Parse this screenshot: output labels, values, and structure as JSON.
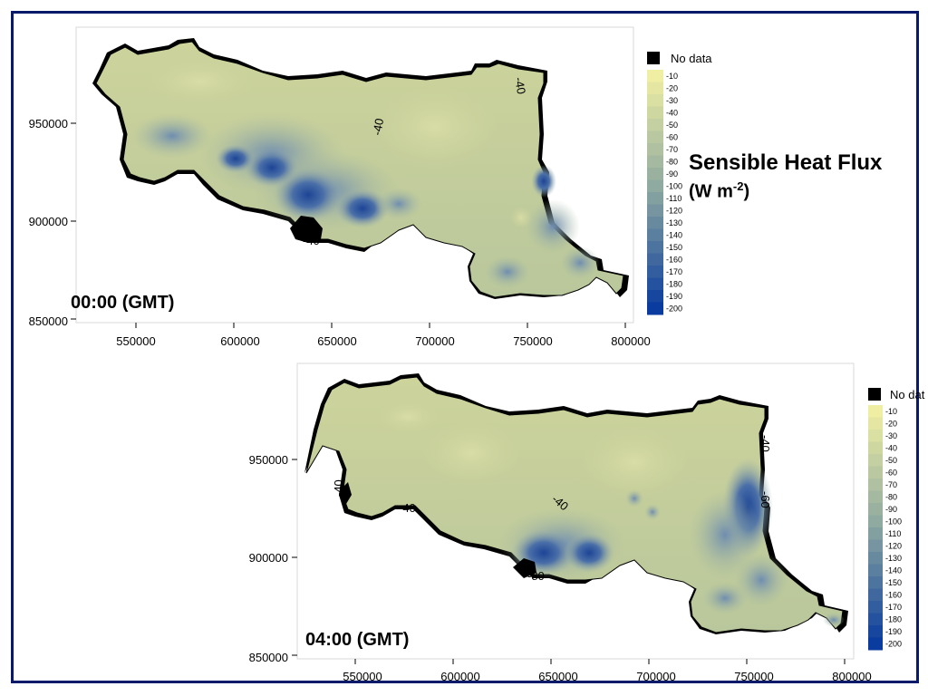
{
  "title": {
    "line1": "Sensible Heat Flux",
    "unit_base": "(W m",
    "unit_exp": "-2",
    "unit_close": ")"
  },
  "legend": {
    "nodata": "No data",
    "nodata_color": "#000000",
    "levels": [
      "-10",
      "-20",
      "-30",
      "-40",
      "-50",
      "-60",
      "-70",
      "-80",
      "-90",
      "-100",
      "-110",
      "-120",
      "-130",
      "-140",
      "-150",
      "-160",
      "-170",
      "-180",
      "-190",
      "-200"
    ],
    "color_top": "#efeea2",
    "color_mid": "#8aa6a0",
    "color_bottom": "#0a3b9e"
  },
  "colors": {
    "frame": "#0a1a6b",
    "region_base": "#c9d19a",
    "region_mid": "#b2c29e",
    "region_low": "#7f99b4",
    "region_deep": "#2f56a0"
  },
  "panels": [
    {
      "time_label": "00:00 (GMT)",
      "x_ticks": [
        "550000",
        "600000",
        "650000",
        "700000",
        "750000",
        "800000"
      ],
      "y_ticks": [
        "950000",
        "900000",
        "850000"
      ],
      "contour_labels": [
        "-40",
        "-40",
        "-40"
      ],
      "legend_nodata": "No data"
    },
    {
      "time_label": "04:00 (GMT)",
      "x_ticks": [
        "550000",
        "600000",
        "650000",
        "700000",
        "750000",
        "800000"
      ],
      "y_ticks": [
        "950000",
        "900000",
        "850000"
      ],
      "contour_labels": [
        "-40",
        "-40",
        "-40",
        "-40",
        "-60",
        "-80"
      ],
      "legend_nodata": "No dat"
    }
  ]
}
